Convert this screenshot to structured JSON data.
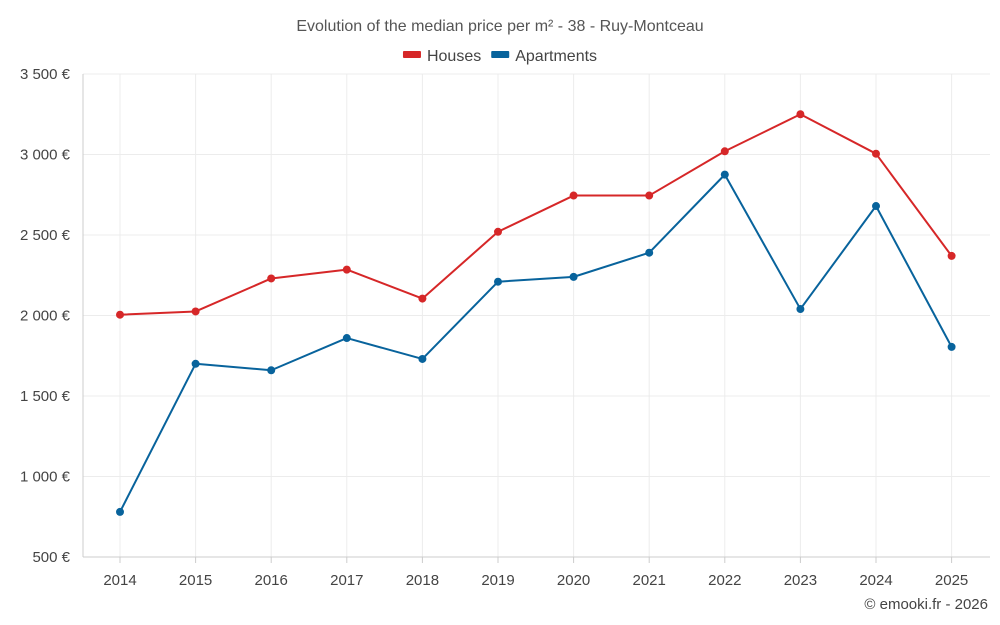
{
  "chart_data": {
    "type": "line",
    "title": "Evolution of the median price per m² - 38 - Ruy-Montceau",
    "categories": [
      "2014",
      "2015",
      "2016",
      "2017",
      "2018",
      "2019",
      "2020",
      "2021",
      "2022",
      "2023",
      "2024",
      "2025"
    ],
    "series": [
      {
        "name": "Houses",
        "color": "#d62728",
        "values": [
          2005,
          2025,
          2230,
          2285,
          2105,
          2520,
          2745,
          2745,
          3020,
          3250,
          3005,
          2370
        ]
      },
      {
        "name": "Apartments",
        "color": "#08639c",
        "values": [
          780,
          1700,
          1660,
          1860,
          1730,
          2210,
          2240,
          2390,
          2875,
          2040,
          2680,
          1805
        ]
      }
    ],
    "y_ticks": [
      "500 €",
      "1 000 €",
      "1 500 €",
      "2 000 €",
      "2 500 €",
      "3 000 €",
      "3 500 €"
    ],
    "y_tick_values": [
      500,
      1000,
      1500,
      2000,
      2500,
      3000,
      3500
    ],
    "ylim": [
      500,
      3500
    ],
    "xlabel": "",
    "ylabel": "",
    "legend_position": "top-center",
    "grid": true
  },
  "footer": {
    "copyright": "© emooki.fr - 2026"
  }
}
